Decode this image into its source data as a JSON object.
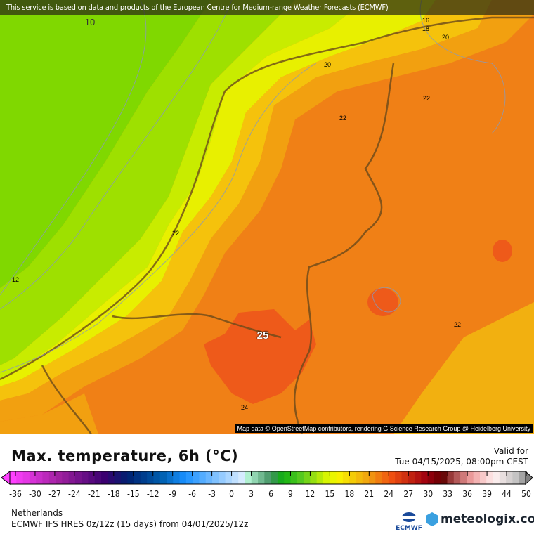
{
  "map": {
    "banner": "This service is based on data and products of the European Centre for Medium-range Weather Forecasts (ECMWF)",
    "attribution": "Map data © OpenStreetMap contributors, rendering GIScience Research Group @ Heidelberg University",
    "contour_labels": [
      "10",
      "16",
      "18",
      "20",
      "20",
      "22",
      "22",
      "22",
      "12",
      "22",
      "25",
      "24"
    ],
    "colors": {
      "cold_green": "#80d800",
      "mid_green": "#b8e800",
      "yellow": "#e8f000",
      "orange": "#f08016",
      "hot": "#ee5a1a"
    }
  },
  "legend": {
    "title": "Max. temperature, 6h (°C)",
    "valid_label": "Valid for",
    "valid_time": "Tue 04/15/2025, 08:00pm CEST",
    "ticks": [
      "-36",
      "-30",
      "-27",
      "-24",
      "-21",
      "-18",
      "-15",
      "-12",
      "-9",
      "-6",
      "-3",
      "0",
      "3",
      "6",
      "9",
      "12",
      "15",
      "18",
      "21",
      "24",
      "27",
      "30",
      "33",
      "36",
      "39",
      "44",
      "50"
    ]
  },
  "footer": {
    "region": "Netherlands",
    "model": "ECMWF IFS HRES 0z/12z (15 days) from  04/01/2025/12z",
    "ecmwf_logo": "ECMWF",
    "brand": "meteologix.com"
  }
}
